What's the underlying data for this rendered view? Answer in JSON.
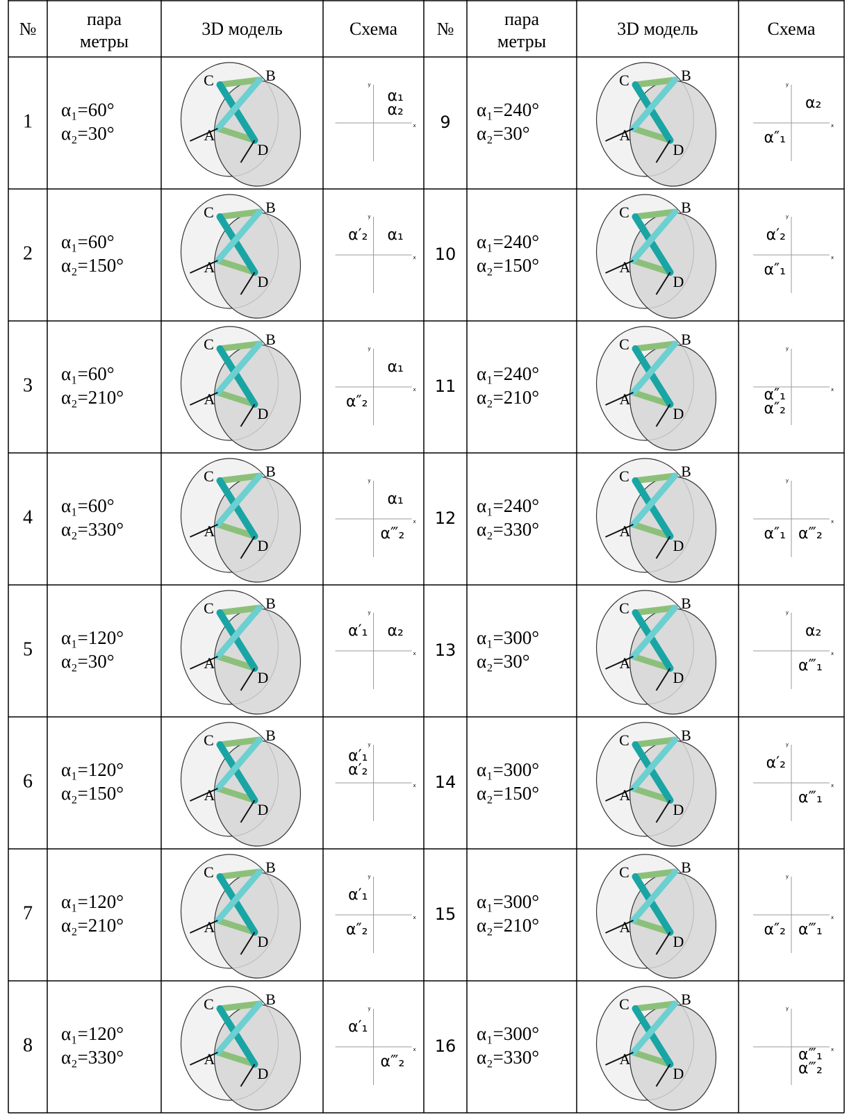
{
  "table": {
    "header": {
      "num": "№",
      "params": [
        "пара",
        "метры"
      ],
      "model": "3D модель",
      "scheme": "Схема"
    },
    "axis_labels": {
      "x": "x",
      "y": "y"
    },
    "rows": [
      {
        "num": 1,
        "params": [
          "α₁=60°",
          "α₂=30°"
        ],
        "model_labels": [
          "A",
          "B",
          "C",
          "D"
        ],
        "scheme": {
          "upper_right": [
            "α₁",
            "α₂"
          ]
        }
      },
      {
        "num": 2,
        "params": [
          "α₁=60°",
          "α₂=150°"
        ],
        "model_labels": [
          "A",
          "B",
          "C",
          "D"
        ],
        "scheme": {
          "upper_left": [
            "α′₂"
          ],
          "upper_right": [
            "α₁"
          ]
        }
      },
      {
        "num": 3,
        "params": [
          "α₁=60°",
          "α₂=210°"
        ],
        "model_labels": [
          "A",
          "B",
          "C",
          "D"
        ],
        "scheme": {
          "upper_right": [
            "α₁"
          ],
          "lower_left": [
            "α″₂"
          ]
        }
      },
      {
        "num": 4,
        "params": [
          "α₁=60°",
          "α₂=330°"
        ],
        "model_labels": [
          "A",
          "B",
          "C",
          "D"
        ],
        "scheme": {
          "upper_right": [
            "α₁"
          ],
          "lower_right": [
            "α‴₂"
          ]
        }
      },
      {
        "num": 5,
        "params": [
          "α₁=120°",
          "α₂=30°"
        ],
        "model_labels": [
          "A",
          "B",
          "C",
          "D"
        ],
        "scheme": {
          "upper_left": [
            "α′₁"
          ],
          "upper_right": [
            "α₂"
          ]
        }
      },
      {
        "num": 6,
        "params": [
          "α₁=120°",
          "α₂=150°"
        ],
        "model_labels": [
          "A",
          "B",
          "C",
          "D"
        ],
        "scheme": {
          "upper_left": [
            "α′₁",
            "α′₂"
          ]
        }
      },
      {
        "num": 7,
        "params": [
          "α₁=120°",
          "α₂=210°"
        ],
        "model_labels": [
          "A",
          "B",
          "C",
          "D"
        ],
        "scheme": {
          "upper_left": [
            "α′₁"
          ],
          "lower_left": [
            "α″₂"
          ]
        }
      },
      {
        "num": 8,
        "params": [
          "α₁=120°",
          "α₂=330°"
        ],
        "model_labels": [
          "A",
          "B",
          "C",
          "D"
        ],
        "scheme": {
          "upper_left": [
            "α′₁"
          ],
          "lower_right": [
            "α‴₂"
          ]
        }
      },
      {
        "num": 9,
        "params": [
          "α₁=240°",
          "α₂=30°"
        ],
        "model_labels": [
          "A",
          "B",
          "C",
          "D"
        ],
        "scheme": {
          "upper_right": [
            "α₂"
          ],
          "lower_left": [
            "α″₁"
          ]
        }
      },
      {
        "num": 10,
        "params": [
          "α₁=240°",
          "α₂=150°"
        ],
        "model_labels": [
          "A",
          "B",
          "C",
          "D"
        ],
        "scheme": {
          "upper_left": [
            "α′₂"
          ],
          "lower_left": [
            "α″₁"
          ]
        }
      },
      {
        "num": 11,
        "params": [
          "α₁=240°",
          "α₂=210°"
        ],
        "model_labels": [
          "A",
          "B",
          "C",
          "D"
        ],
        "scheme": {
          "lower_left": [
            "α″₁",
            "α″₂"
          ]
        }
      },
      {
        "num": 12,
        "params": [
          "α₁=240°",
          "α₂=330°"
        ],
        "model_labels": [
          "A",
          "B",
          "C",
          "D"
        ],
        "scheme": {
          "lower_left": [
            "α″₁"
          ],
          "lower_right": [
            "α‴₂"
          ]
        }
      },
      {
        "num": 13,
        "params": [
          "α₁=300°",
          "α₂=30°"
        ],
        "model_labels": [
          "A",
          "B",
          "C",
          "D"
        ],
        "scheme": {
          "upper_right": [
            "α₂"
          ],
          "lower_right": [
            "α‴₁"
          ]
        }
      },
      {
        "num": 14,
        "params": [
          "α₁=300°",
          "α₂=150°"
        ],
        "model_labels": [
          "A",
          "B",
          "C",
          "D"
        ],
        "scheme": {
          "upper_left": [
            "α′₂"
          ],
          "lower_right": [
            "α‴₁"
          ]
        }
      },
      {
        "num": 15,
        "params": [
          "α₁=300°",
          "α₂=210°"
        ],
        "model_labels": [
          "A",
          "B",
          "C",
          "D"
        ],
        "scheme": {
          "lower_left": [
            "α″₂"
          ],
          "lower_right": [
            "α‴₁"
          ]
        }
      },
      {
        "num": 16,
        "params": [
          "α₁=300°",
          "α₂=330°"
        ],
        "model_labels": [
          "A",
          "B",
          "C",
          "D"
        ],
        "scheme": {
          "lower_right": [
            "α‴₁",
            "α‴₂"
          ]
        }
      }
    ]
  }
}
